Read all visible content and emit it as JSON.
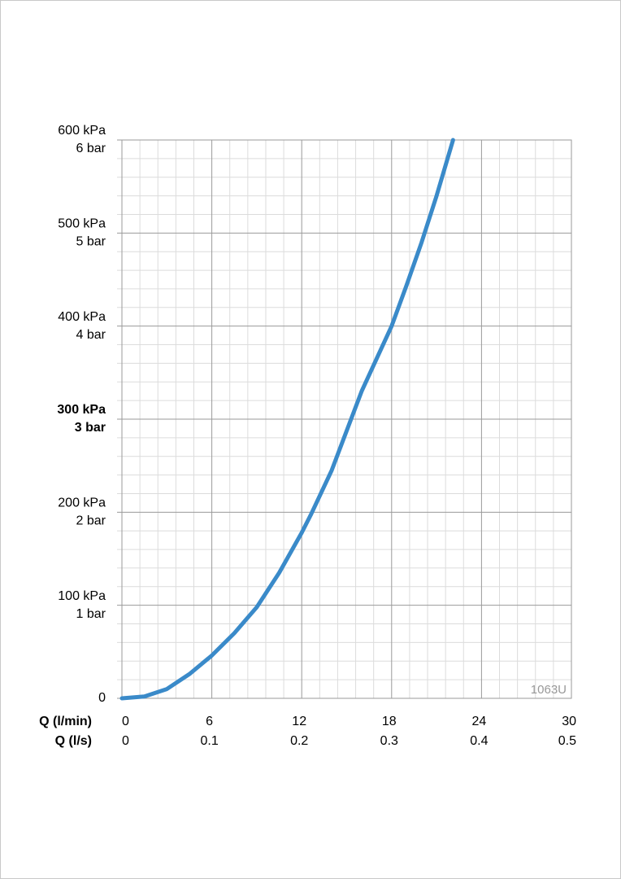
{
  "chart_data": {
    "type": "line",
    "xlabel": "Q (l/min)",
    "x2label": "Q (l/s)",
    "xlim": [
      0,
      30
    ],
    "xticks": [
      0,
      6,
      12,
      18,
      24,
      30
    ],
    "x2lim": [
      0,
      0.5
    ],
    "x2ticks": [
      0,
      0.1,
      0.2,
      0.3,
      0.4,
      0.5
    ],
    "ylim": [
      0,
      600
    ],
    "yticks": [
      0,
      {
        "value": 100,
        "label": "100 kPa"
      },
      {
        "value": 200,
        "label": "200 kPa"
      },
      {
        "value": 300,
        "label": "300 kPa"
      },
      {
        "value": 400,
        "label": "400 kPa"
      },
      {
        "value": 500,
        "label": "500 kPa"
      },
      {
        "value": 600,
        "label": "600 kPa"
      }
    ],
    "y2lim": [
      0,
      6
    ],
    "y2ticks": [
      {
        "value": 1,
        "label": "1 bar"
      },
      {
        "value": 2,
        "label": "2 bar"
      },
      {
        "value": 3,
        "label": "3 bar"
      },
      {
        "value": 4,
        "label": "4 bar"
      },
      {
        "value": 5,
        "label": "5 bar"
      },
      {
        "value": 6,
        "label": "6 bar"
      }
    ],
    "emphasized_yvalue": 300,
    "grid": true,
    "minor_grid": true,
    "annotation": "1063U",
    "x": [
      0,
      1.5,
      3,
      4.5,
      6,
      7.5,
      9,
      10.5,
      12,
      12.6,
      14,
      16,
      18,
      19,
      20,
      21,
      22.1
    ],
    "series": [
      {
        "color": "#3a8ac9",
        "values": [
          0,
          2,
          10,
          26,
          46,
          70,
          98,
          135,
          178,
          197,
          245,
          330,
          400,
          444,
          490,
          540,
          600
        ]
      }
    ]
  }
}
